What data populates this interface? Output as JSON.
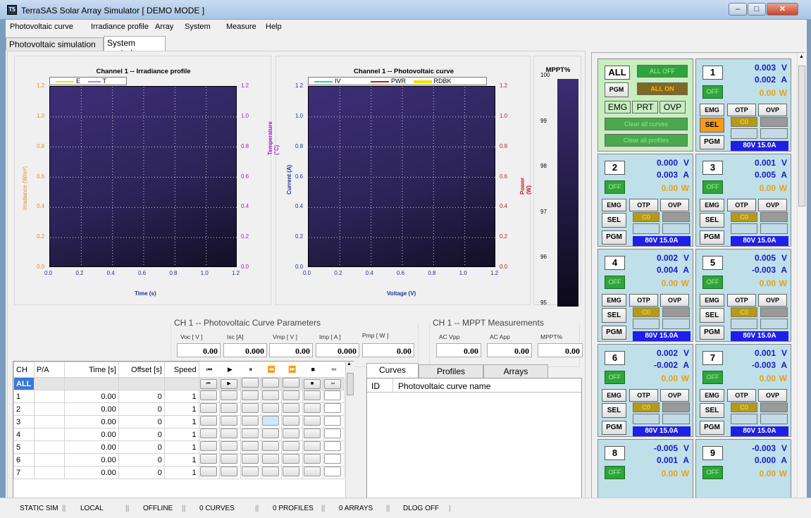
{
  "window": {
    "title": "TerraSAS Solar Array Simulator  [ DEMO MODE ]",
    "app_icon": "terrasas-logo-icon"
  },
  "menu": [
    "Photovoltaic curve",
    "Irradiance profile",
    "Array",
    "System",
    "Measure",
    "Help"
  ],
  "tabs": [
    "Photovoltaic simulation",
    "System control"
  ],
  "chart_data": [
    {
      "type": "line",
      "title": "Channel 1 -- Irradiance profile",
      "series": [
        {
          "name": "E",
          "color": "#ffff44",
          "values": []
        },
        {
          "name": "T",
          "color": "#cc88ee",
          "values": []
        }
      ],
      "x_ticks": [
        "0.0",
        "0.2",
        "0.4",
        "0.6",
        "0.8",
        "1.0",
        "1.2"
      ],
      "y_ticks": [
        "0.0",
        "0.2",
        "0.4",
        "0.6",
        "0.8",
        "1.0",
        "1.2"
      ],
      "xlabel": "Time (s)",
      "ylabel": "Irradiance (W/m²)",
      "y2label": "Temperature (°C)",
      "xlim": [
        0,
        1.2
      ],
      "ylim": [
        0,
        1.2
      ],
      "grid": true
    },
    {
      "type": "line",
      "title": "Channel 1 -- Photovoltaic curve",
      "series": [
        {
          "name": "IV",
          "color": "#44dddd",
          "values": []
        },
        {
          "name": "PWR",
          "color": "#cc2222",
          "values": []
        },
        {
          "name": "RDBK",
          "color": "#ffff00",
          "values": []
        }
      ],
      "x_ticks": [
        "0.0",
        "0.2",
        "0.4",
        "0.6",
        "0.8",
        "1.0",
        "1.2"
      ],
      "y_ticks": [
        "0.0",
        "0.2",
        "0.4",
        "0.6",
        "0.8",
        "1.0",
        "1.2"
      ],
      "xlabel": "Voltage (V)",
      "ylabel": "Current (A)",
      "y2label": "Power (W)",
      "xlim": [
        0,
        1.2
      ],
      "ylim": [
        0,
        1.2
      ],
      "grid": true
    },
    {
      "type": "bar",
      "title": "MPPT%",
      "y_ticks": [
        "95",
        "96",
        "97",
        "98",
        "99",
        "100"
      ],
      "ylim": [
        95,
        100
      ],
      "values": []
    }
  ],
  "pv_params": {
    "title": "CH 1 -- Photovoltaic Curve Parameters",
    "fields": [
      {
        "label": "Voc [ V ]",
        "value": "0.00"
      },
      {
        "label": "Isc [A]",
        "value": "0.000"
      },
      {
        "label": "Vmp [ V ]",
        "value": "0.00"
      },
      {
        "label": "Imp [ A ]",
        "value": "0.000"
      },
      {
        "label": "Pmp [ W ]",
        "value": "0.00"
      }
    ]
  },
  "mppt": {
    "title": "CH 1 -- MPPT Measurements",
    "fields": [
      {
        "label": "AC Vpp",
        "value": "0.00"
      },
      {
        "label": "AC App",
        "value": "0.00"
      },
      {
        "label": "MPPT%",
        "value": "0.00"
      }
    ]
  },
  "grid": {
    "headers": [
      "CH",
      "P/A",
      "Time [s]",
      "Offset [s]",
      "Speed"
    ],
    "all_label": "ALL",
    "rows": [
      [
        "1",
        "",
        "0.00",
        "0",
        "1"
      ],
      [
        "2",
        "",
        "0.00",
        "0",
        "1"
      ],
      [
        "3",
        "",
        "0.00",
        "0",
        "1"
      ],
      [
        "4",
        "",
        "0.00",
        "0",
        "1"
      ],
      [
        "5",
        "",
        "0.00",
        "0",
        "1"
      ],
      [
        "6",
        "",
        "0.00",
        "0",
        "1"
      ],
      [
        "7",
        "",
        "0.00",
        "0",
        "1"
      ]
    ],
    "transport_icons": [
      "⏮",
      "▶",
      "⏸",
      "⏪",
      "⏩",
      "■",
      "⇦"
    ]
  },
  "library": {
    "tabs": [
      "Curves",
      "Profiles",
      "Arrays"
    ],
    "headers": [
      "ID",
      "Photovoltaic curve name"
    ]
  },
  "all_panel": {
    "label": "ALL",
    "all_off": "ALL OFF",
    "pgm": "PGM",
    "all_on": "ALL ON",
    "emg": "EMG",
    "prt": "PRT",
    "ovp": "OVP",
    "clear_curves": "Clear all curves",
    "clear_profiles": "Clear all profiles"
  },
  "channels": [
    {
      "num": "1",
      "v": "0.003",
      "a": "0.002",
      "w": "0.00",
      "sel_active": true
    },
    {
      "num": "2",
      "v": "0.000",
      "a": "0.003",
      "w": "0.00"
    },
    {
      "num": "3",
      "v": "0.001",
      "a": "0.005",
      "w": "0.00"
    },
    {
      "num": "4",
      "v": "0.002",
      "a": "0.004",
      "w": "0.00"
    },
    {
      "num": "5",
      "v": "0.005",
      "a": "-0.003",
      "w": "0.00"
    },
    {
      "num": "6",
      "v": "0.002",
      "a": "-0.002",
      "w": "0.00"
    },
    {
      "num": "7",
      "v": "0.001",
      "a": "-0.003",
      "w": "0.00"
    },
    {
      "num": "8",
      "v": "-0.005",
      "a": "0.001",
      "w": "0.00"
    },
    {
      "num": "9",
      "v": "-0.003",
      "a": "0.000",
      "w": "0.00"
    }
  ],
  "channel_labels": {
    "off": "OFF",
    "emg": "EMG",
    "otp": "OTP",
    "ovp": "OVP",
    "sel": "SEL",
    "pgm": "PGM",
    "c0": "C0",
    "range": "80V 15.0A",
    "v_unit": "V",
    "a_unit": "A",
    "w_unit": "W"
  },
  "status": [
    "STATIC SIM",
    "LOCAL",
    "OFFLINE",
    "0 CURVES",
    "0 PROFILES",
    "0 ARRAYS",
    "DLOG OFF"
  ]
}
